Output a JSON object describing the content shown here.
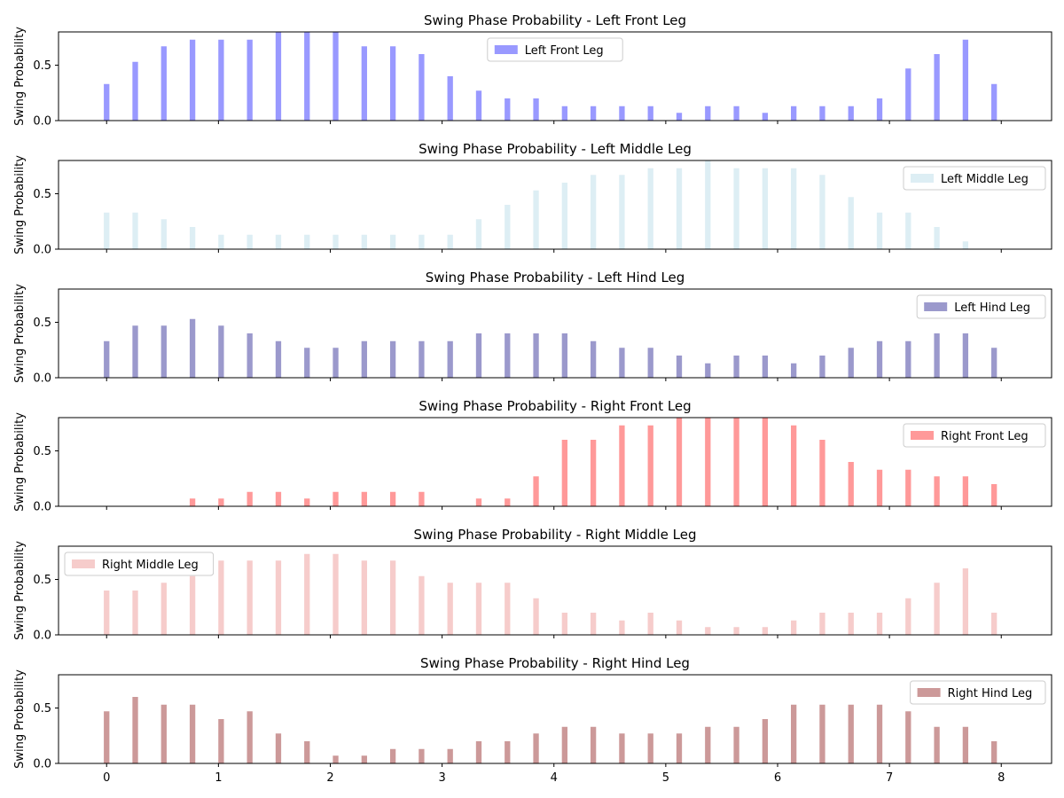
{
  "chart_data": [
    {
      "type": "bar",
      "title": "Swing Phase Probability - Left Front Leg",
      "ylabel": "Swing Probability",
      "xlabel": "",
      "legend": "Left Front Leg",
      "legend_loc": "upper center",
      "color": "#9999ff",
      "ylim": [
        0,
        0.8
      ],
      "yticks": [
        "0.0",
        "0.5"
      ],
      "x": [
        0,
        0.256,
        0.512,
        0.768,
        1.024,
        1.28,
        1.536,
        1.792,
        2.048,
        2.304,
        2.56,
        2.816,
        3.072,
        3.328,
        3.584,
        3.84,
        4.096,
        4.352,
        4.608,
        4.864,
        5.12,
        5.376,
        5.632,
        5.888,
        6.144,
        6.4,
        6.656,
        6.912,
        7.168,
        7.424,
        7.68,
        7.936
      ],
      "values": [
        0.33,
        0.53,
        0.67,
        0.73,
        0.73,
        0.73,
        0.8,
        0.8,
        0.8,
        0.67,
        0.67,
        0.6,
        0.4,
        0.27,
        0.2,
        0.2,
        0.13,
        0.13,
        0.13,
        0.13,
        0.07,
        0.13,
        0.13,
        0.07,
        0.13,
        0.13,
        0.13,
        0.2,
        0.47,
        0.6,
        0.73,
        0.33
      ]
    },
    {
      "type": "bar",
      "title": "Swing Phase Probability - Left Middle Leg",
      "ylabel": "Swing Probability",
      "xlabel": "",
      "legend": "Left Middle Leg",
      "legend_loc": "upper right",
      "color": "#ddeef4",
      "ylim": [
        0,
        0.8
      ],
      "yticks": [
        "0.0",
        "0.5"
      ],
      "x": [
        0,
        0.256,
        0.512,
        0.768,
        1.024,
        1.28,
        1.536,
        1.792,
        2.048,
        2.304,
        2.56,
        2.816,
        3.072,
        3.328,
        3.584,
        3.84,
        4.096,
        4.352,
        4.608,
        4.864,
        5.12,
        5.376,
        5.632,
        5.888,
        6.144,
        6.4,
        6.656,
        6.912,
        7.168,
        7.424,
        7.68,
        7.936
      ],
      "values": [
        0.33,
        0.33,
        0.27,
        0.2,
        0.13,
        0.13,
        0.13,
        0.13,
        0.13,
        0.13,
        0.13,
        0.13,
        0.13,
        0.27,
        0.4,
        0.53,
        0.6,
        0.67,
        0.67,
        0.73,
        0.73,
        0.8,
        0.73,
        0.73,
        0.73,
        0.67,
        0.47,
        0.33,
        0.33,
        0.2,
        0.07,
        0
      ]
    },
    {
      "type": "bar",
      "title": "Swing Phase Probability - Left Hind Leg",
      "ylabel": "Swing Probability",
      "xlabel": "",
      "legend": "Left Hind Leg",
      "legend_loc": "upper right",
      "color": "#9b99cc",
      "ylim": [
        0,
        0.8
      ],
      "yticks": [
        "0.0",
        "0.5"
      ],
      "x": [
        0,
        0.256,
        0.512,
        0.768,
        1.024,
        1.28,
        1.536,
        1.792,
        2.048,
        2.304,
        2.56,
        2.816,
        3.072,
        3.328,
        3.584,
        3.84,
        4.096,
        4.352,
        4.608,
        4.864,
        5.12,
        5.376,
        5.632,
        5.888,
        6.144,
        6.4,
        6.656,
        6.912,
        7.168,
        7.424,
        7.68,
        7.936
      ],
      "values": [
        0.33,
        0.47,
        0.47,
        0.53,
        0.47,
        0.4,
        0.33,
        0.27,
        0.27,
        0.33,
        0.33,
        0.33,
        0.33,
        0.4,
        0.4,
        0.4,
        0.4,
        0.33,
        0.27,
        0.27,
        0.2,
        0.13,
        0.2,
        0.2,
        0.13,
        0.2,
        0.27,
        0.33,
        0.33,
        0.4,
        0.4,
        0.27
      ]
    },
    {
      "type": "bar",
      "title": "Swing Phase Probability - Right Front Leg",
      "ylabel": "Swing Probability",
      "xlabel": "",
      "legend": "Right Front Leg",
      "legend_loc": "upper right",
      "color": "#ff9999",
      "ylim": [
        0,
        0.8
      ],
      "yticks": [
        "0.0",
        "0.5"
      ],
      "x": [
        0,
        0.256,
        0.512,
        0.768,
        1.024,
        1.28,
        1.536,
        1.792,
        2.048,
        2.304,
        2.56,
        2.816,
        3.072,
        3.328,
        3.584,
        3.84,
        4.096,
        4.352,
        4.608,
        4.864,
        5.12,
        5.376,
        5.632,
        5.888,
        6.144,
        6.4,
        6.656,
        6.912,
        7.168,
        7.424,
        7.68,
        7.936
      ],
      "values": [
        0,
        0,
        0,
        0.07,
        0.07,
        0.13,
        0.13,
        0.07,
        0.13,
        0.13,
        0.13,
        0.13,
        0,
        0.07,
        0.07,
        0.27,
        0.6,
        0.6,
        0.73,
        0.73,
        0.8,
        0.8,
        0.8,
        0.8,
        0.73,
        0.6,
        0.4,
        0.33,
        0.33,
        0.27,
        0.27,
        0.2
      ]
    },
    {
      "type": "bar",
      "title": "Swing Phase Probability - Right Middle Leg",
      "ylabel": "Swing Probability",
      "xlabel": "",
      "legend": "Right Middle Leg",
      "legend_loc": "upper left",
      "color": "#f6cccb",
      "ylim": [
        0,
        0.8
      ],
      "yticks": [
        "0.0",
        "0.5"
      ],
      "x": [
        0,
        0.256,
        0.512,
        0.768,
        1.024,
        1.28,
        1.536,
        1.792,
        2.048,
        2.304,
        2.56,
        2.816,
        3.072,
        3.328,
        3.584,
        3.84,
        4.096,
        4.352,
        4.608,
        4.864,
        5.12,
        5.376,
        5.632,
        5.888,
        6.144,
        6.4,
        6.656,
        6.912,
        7.168,
        7.424,
        7.68,
        7.936
      ],
      "values": [
        0.4,
        0.4,
        0.47,
        0.53,
        0.67,
        0.67,
        0.67,
        0.73,
        0.73,
        0.67,
        0.67,
        0.53,
        0.47,
        0.47,
        0.47,
        0.33,
        0.2,
        0.2,
        0.13,
        0.2,
        0.13,
        0.07,
        0.07,
        0.07,
        0.13,
        0.2,
        0.2,
        0.2,
        0.33,
        0.47,
        0.6,
        0.2
      ]
    },
    {
      "type": "bar",
      "title": "Swing Phase Probability - Right Hind Leg",
      "ylabel": "Swing Probability",
      "xlabel": "",
      "legend": "Right Hind Leg",
      "legend_loc": "upper right",
      "color": "#cc9999",
      "ylim": [
        0,
        0.8
      ],
      "yticks": [
        "0.0",
        "0.5"
      ],
      "xticks": [
        "0",
        "1",
        "2",
        "3",
        "4",
        "5",
        "6",
        "7",
        "8"
      ],
      "x": [
        0,
        0.256,
        0.512,
        0.768,
        1.024,
        1.28,
        1.536,
        1.792,
        2.048,
        2.304,
        2.56,
        2.816,
        3.072,
        3.328,
        3.584,
        3.84,
        4.096,
        4.352,
        4.608,
        4.864,
        5.12,
        5.376,
        5.632,
        5.888,
        6.144,
        6.4,
        6.656,
        6.912,
        7.168,
        7.424,
        7.68,
        7.936
      ],
      "values": [
        0.47,
        0.6,
        0.53,
        0.53,
        0.4,
        0.47,
        0.27,
        0.2,
        0.07,
        0.07,
        0.13,
        0.13,
        0.13,
        0.2,
        0.2,
        0.27,
        0.33,
        0.33,
        0.27,
        0.27,
        0.27,
        0.33,
        0.33,
        0.4,
        0.53,
        0.53,
        0.53,
        0.53,
        0.47,
        0.33,
        0.33,
        0.2
      ]
    }
  ]
}
